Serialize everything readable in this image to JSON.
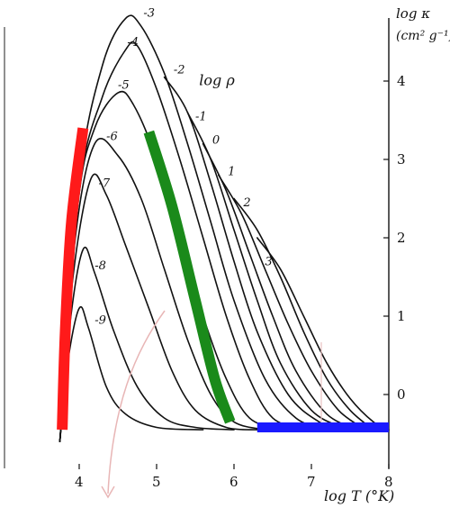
{
  "chart_data": {
    "type": "line",
    "xlabel": "log T (°K)",
    "ylabel_line1": "log κ",
    "ylabel_line2": "(cm² g⁻¹)",
    "legend_title": "log ρ",
    "xlim": [
      3.7,
      8.0
    ],
    "ylim": [
      -0.6,
      5.0
    ],
    "x_ticks": [
      4,
      5,
      6,
      7,
      8
    ],
    "y_ticks": [
      0,
      1,
      2,
      3,
      4
    ],
    "series": [
      {
        "name": "-9",
        "label": "-9",
        "points": [
          [
            3.75,
            -0.6
          ],
          [
            3.85,
            0.4
          ],
          [
            4.0,
            1.1
          ],
          [
            4.12,
            0.85
          ],
          [
            4.35,
            0.1
          ],
          [
            4.6,
            -0.25
          ],
          [
            5.0,
            -0.42
          ],
          [
            5.6,
            -0.45
          ]
        ]
      },
      {
        "name": "-8",
        "label": "-8",
        "points": [
          [
            3.75,
            -0.6
          ],
          [
            3.88,
            0.9
          ],
          [
            4.05,
            1.85
          ],
          [
            4.2,
            1.55
          ],
          [
            4.45,
            0.8
          ],
          [
            4.75,
            0.1
          ],
          [
            5.1,
            -0.3
          ],
          [
            5.5,
            -0.42
          ],
          [
            6.0,
            -0.45
          ]
        ]
      },
      {
        "name": "-7",
        "label": "-7",
        "points": [
          [
            3.75,
            -0.6
          ],
          [
            3.92,
            1.5
          ],
          [
            4.15,
            2.75
          ],
          [
            4.35,
            2.55
          ],
          [
            4.6,
            1.9
          ],
          [
            4.9,
            1.1
          ],
          [
            5.2,
            0.3
          ],
          [
            5.5,
            -0.2
          ],
          [
            5.9,
            -0.42
          ],
          [
            6.3,
            -0.45
          ]
        ]
      },
      {
        "name": "-6",
        "label": "-6",
        "points": [
          [
            3.75,
            -0.6
          ],
          [
            3.95,
            2.0
          ],
          [
            4.2,
            3.2
          ],
          [
            4.5,
            3.05
          ],
          [
            4.8,
            2.5
          ],
          [
            5.1,
            1.6
          ],
          [
            5.4,
            0.7
          ],
          [
            5.7,
            0.0
          ],
          [
            6.0,
            -0.35
          ],
          [
            6.4,
            -0.45
          ]
        ]
      },
      {
        "name": "-5",
        "label": "-5",
        "points": [
          [
            3.75,
            -0.6
          ],
          [
            3.98,
            2.4
          ],
          [
            4.2,
            3.4
          ],
          [
            4.5,
            3.85
          ],
          [
            4.7,
            3.7
          ],
          [
            5.0,
            3.0
          ],
          [
            5.3,
            2.0
          ],
          [
            5.6,
            1.0
          ],
          [
            5.9,
            0.2
          ],
          [
            6.2,
            -0.3
          ],
          [
            6.6,
            -0.45
          ]
        ]
      },
      {
        "name": "-4",
        "label": "-4",
        "points": [
          [
            3.75,
            -0.6
          ],
          [
            4.0,
            2.6
          ],
          [
            4.3,
            3.8
          ],
          [
            4.6,
            4.4
          ],
          [
            4.75,
            4.45
          ],
          [
            5.0,
            3.9
          ],
          [
            5.3,
            3.0
          ],
          [
            5.6,
            2.0
          ],
          [
            5.9,
            1.0
          ],
          [
            6.2,
            0.2
          ],
          [
            6.5,
            -0.3
          ],
          [
            6.9,
            -0.45
          ]
        ]
      },
      {
        "name": "-3",
        "label": "-3",
        "points": [
          [
            3.75,
            -0.6
          ],
          [
            4.0,
            2.7
          ],
          [
            4.3,
            4.2
          ],
          [
            4.6,
            4.8
          ],
          [
            4.8,
            4.7
          ],
          [
            5.1,
            4.1
          ],
          [
            5.4,
            3.2
          ],
          [
            5.7,
            2.2
          ],
          [
            6.0,
            1.2
          ],
          [
            6.4,
            0.2
          ],
          [
            6.8,
            -0.3
          ],
          [
            7.2,
            -0.45
          ]
        ]
      },
      {
        "name": "-2",
        "label": "-2",
        "points": [
          [
            5.1,
            4.05
          ],
          [
            5.4,
            3.6
          ],
          [
            5.7,
            2.7
          ],
          [
            6.0,
            1.7
          ],
          [
            6.3,
            0.8
          ],
          [
            6.7,
            0.0
          ],
          [
            7.1,
            -0.35
          ],
          [
            7.4,
            -0.45
          ]
        ]
      },
      {
        "name": "-1",
        "label": "-1",
        "points": [
          [
            5.4,
            3.6
          ],
          [
            5.7,
            3.0
          ],
          [
            6.0,
            2.1
          ],
          [
            6.3,
            1.2
          ],
          [
            6.6,
            0.4
          ],
          [
            7.0,
            -0.2
          ],
          [
            7.4,
            -0.42
          ],
          [
            7.6,
            -0.45
          ]
        ]
      },
      {
        "name": "0",
        "label": "0",
        "points": [
          [
            5.6,
            3.2
          ],
          [
            5.9,
            2.6
          ],
          [
            6.2,
            1.8
          ],
          [
            6.5,
            1.0
          ],
          [
            6.8,
            0.3
          ],
          [
            7.2,
            -0.25
          ],
          [
            7.6,
            -0.45
          ]
        ]
      },
      {
        "name": "1",
        "label": "1",
        "points": [
          [
            5.8,
            2.8
          ],
          [
            6.1,
            2.3
          ],
          [
            6.4,
            1.6
          ],
          [
            6.7,
            0.9
          ],
          [
            7.0,
            0.3
          ],
          [
            7.35,
            -0.2
          ],
          [
            7.7,
            -0.45
          ]
        ]
      },
      {
        "name": "2",
        "label": "2",
        "points": [
          [
            6.0,
            2.5
          ],
          [
            6.3,
            2.1
          ],
          [
            6.6,
            1.5
          ],
          [
            6.9,
            0.8
          ],
          [
            7.2,
            0.2
          ],
          [
            7.5,
            -0.2
          ],
          [
            7.8,
            -0.45
          ]
        ]
      },
      {
        "name": "3",
        "label": "3",
        "points": [
          [
            6.3,
            2.0
          ],
          [
            6.6,
            1.6
          ],
          [
            6.9,
            1.0
          ],
          [
            7.2,
            0.4
          ],
          [
            7.5,
            -0.05
          ],
          [
            7.8,
            -0.35
          ],
          [
            8.0,
            -0.45
          ]
        ]
      }
    ],
    "label_positions": [
      {
        "label": "-3",
        "x": 4.83,
        "y": 4.82
      },
      {
        "label": "-4",
        "x": 4.62,
        "y": 4.45
      },
      {
        "label": "-2",
        "x": 5.22,
        "y": 4.1
      },
      {
        "label": "log ρ",
        "x": 5.55,
        "y": 3.95
      },
      {
        "label": "-5",
        "x": 4.5,
        "y": 3.9
      },
      {
        "label": "-1",
        "x": 5.5,
        "y": 3.5
      },
      {
        "label": "-6",
        "x": 4.35,
        "y": 3.25
      },
      {
        "label": "0",
        "x": 5.72,
        "y": 3.2
      },
      {
        "label": "1",
        "x": 5.92,
        "y": 2.8
      },
      {
        "label": "-7",
        "x": 4.25,
        "y": 2.65
      },
      {
        "label": "2",
        "x": 6.12,
        "y": 2.4
      },
      {
        "label": "3",
        "x": 6.4,
        "y": 1.65
      },
      {
        "label": "-8",
        "x": 4.2,
        "y": 1.6
      },
      {
        "label": "-9",
        "x": 4.2,
        "y": 0.9
      }
    ],
    "highlights": [
      {
        "name": "red-band",
        "color": "#ff1a1a",
        "points": [
          [
            3.78,
            -0.45
          ],
          [
            3.82,
            0.8
          ],
          [
            3.9,
            2.2
          ],
          [
            4.05,
            3.4
          ]
        ]
      },
      {
        "name": "green-band",
        "color": "#1a8a1a",
        "points": [
          [
            4.9,
            3.35
          ],
          [
            5.2,
            2.4
          ],
          [
            5.5,
            1.2
          ],
          [
            5.75,
            0.2
          ],
          [
            5.95,
            -0.35
          ]
        ]
      },
      {
        "name": "blue-band",
        "color": "#1a1aff",
        "points": [
          [
            6.3,
            -0.42
          ],
          [
            8.0,
            -0.42
          ]
        ]
      }
    ],
    "grid": false
  }
}
